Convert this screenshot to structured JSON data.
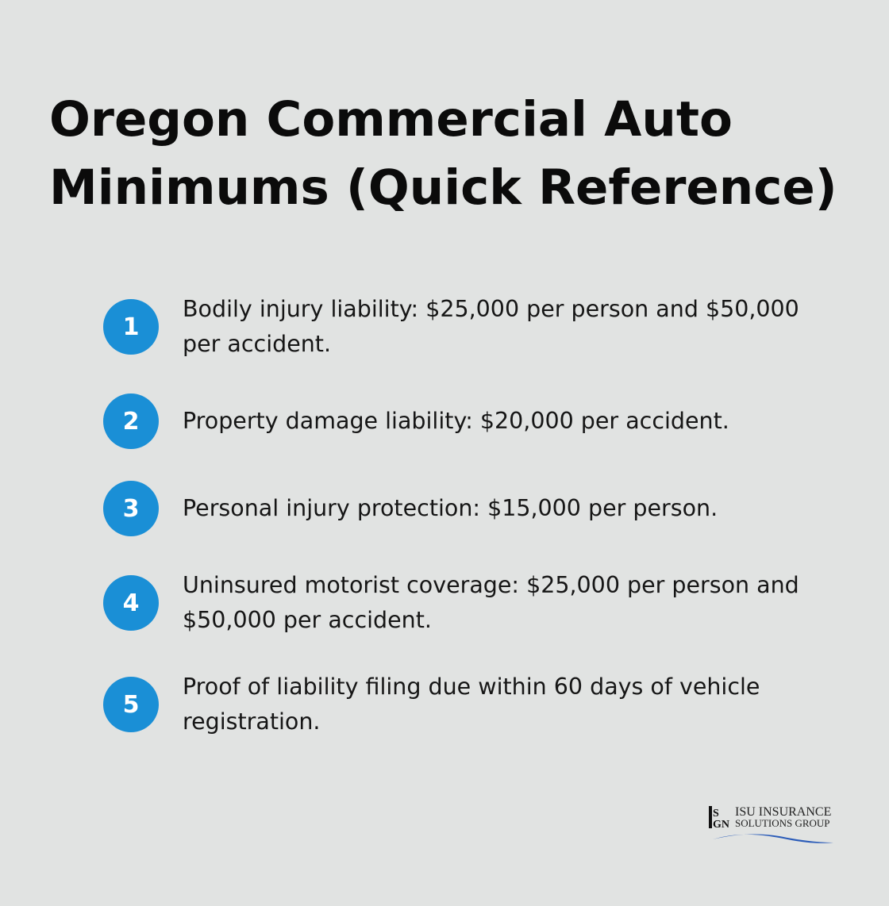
{
  "title": "Oregon Commercial Auto Minimums (Quick Reference)",
  "items": [
    {
      "number": "1",
      "text": "Bodily injury liability: $25,000 per person and $50,000 per accident."
    },
    {
      "number": "2",
      "text": "Property damage liability: $20,000 per accident."
    },
    {
      "number": "3",
      "text": "Personal injury protection: $15,000 per person."
    },
    {
      "number": "4",
      "text": "Uninsured motorist coverage: $25,000 per person and $50,000 per accident."
    },
    {
      "number": "5",
      "text": "Proof of liability filing due within 60 days of vehicle registration."
    }
  ],
  "logo": {
    "line1": "ISU INSURANCE",
    "line2": "SOLUTIONS GROUP",
    "mark": "ISGN"
  },
  "colors": {
    "accent": "#1a8fd6",
    "background": "#e1e3e2"
  }
}
